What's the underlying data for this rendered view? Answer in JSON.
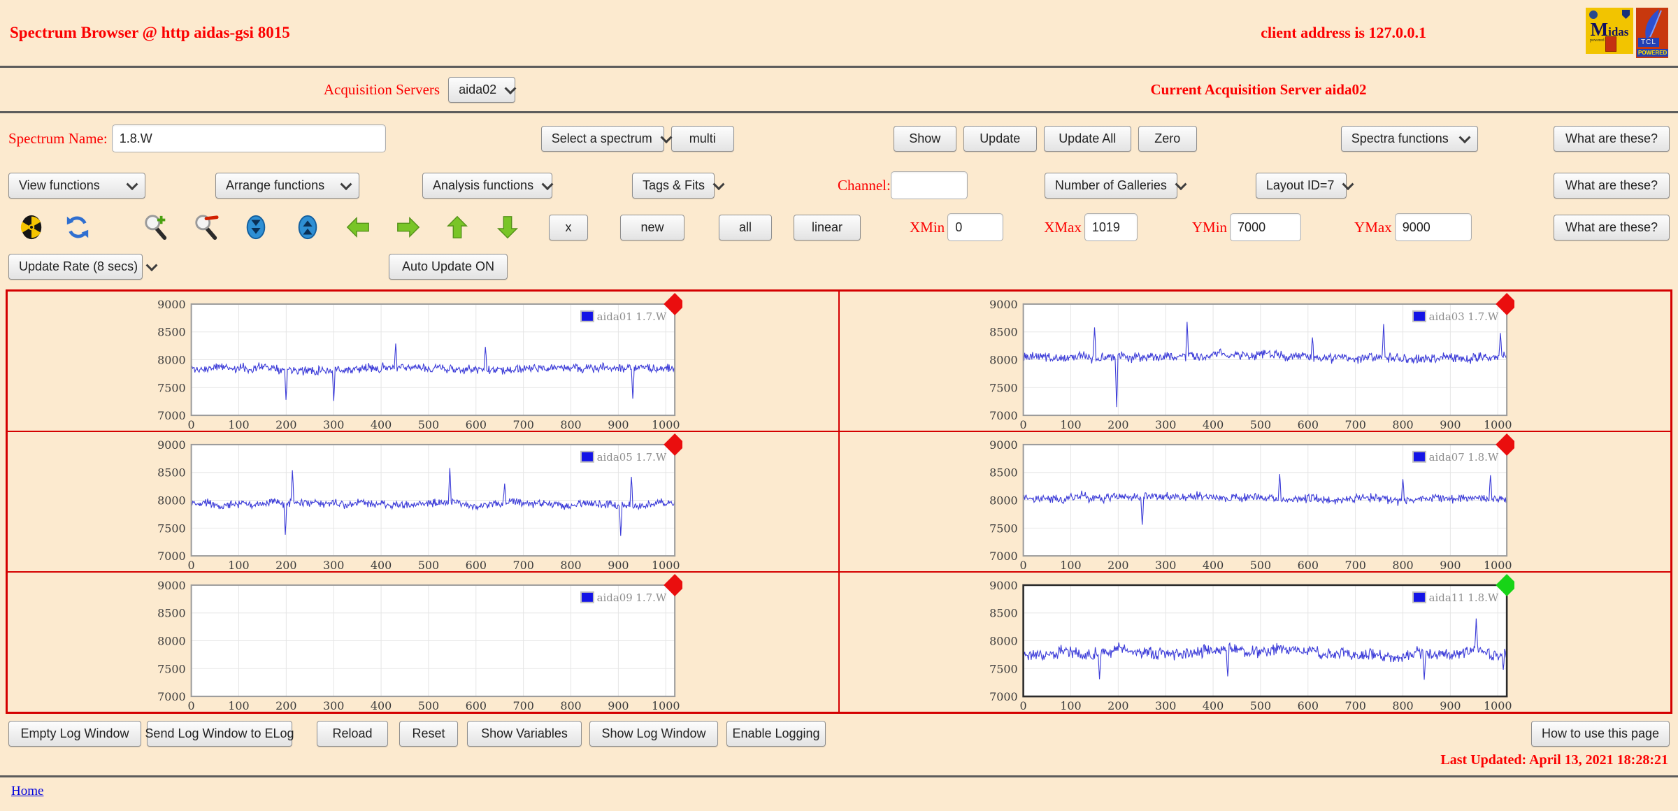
{
  "page": {
    "title": "Spectrum Browser @ http aidas-gsi 8015",
    "client_address": "client address is 127.0.0.1",
    "last_updated": "Last Updated: April 13, 2021 18:28:21",
    "home_link": "Home"
  },
  "logos": {
    "midas_initial": "M",
    "midas_rest": "idas",
    "powered_by": "powered by",
    "tcl_text": "TCL",
    "tcl_powered": "POWERED"
  },
  "acquisition": {
    "label": "Acquisition Servers",
    "selected_server": "aida02",
    "current_server_text": "Current Acquisition Server aida02"
  },
  "common": {
    "what_are_these": "What are these?"
  },
  "spectrum_row": {
    "name_label": "Spectrum Name:",
    "name_value": "1.8.W",
    "select_spectrum": "Select a spectrum",
    "multi": "multi",
    "show": "Show",
    "update": "Update",
    "update_all": "Update All",
    "zero": "Zero",
    "spectra_functions": "Spectra functions"
  },
  "functions_row": {
    "view_functions": "View functions",
    "arrange_functions": "Arrange functions",
    "analysis_functions": "Analysis functions",
    "tags_fits": "Tags & Fits",
    "channel_label": "Channel:",
    "channel_value": "",
    "number_of_galleries": "Number of Galleries",
    "layout_id": "Layout ID=7"
  },
  "toolbar": {
    "icons": [
      "radiation-icon",
      "refresh-icon",
      "zoom-in-icon",
      "zoom-out-icon",
      "shrink-vertical-icon",
      "expand-vertical-icon",
      "arrow-left-icon",
      "arrow-right-icon",
      "arrow-up-icon",
      "arrow-down-icon"
    ],
    "x": "x",
    "new": "new",
    "all": "all",
    "linear": "linear",
    "xmin_label": "XMin",
    "xmin": "0",
    "xmax_label": "XMax",
    "xmax": "1019",
    "ymin_label": "YMin",
    "ymin": "7000",
    "ymax_label": "YMax",
    "ymax": "9000"
  },
  "update_row": {
    "update_rate": "Update Rate (8 secs)",
    "auto_update": "Auto Update ON"
  },
  "footer": {
    "buttons": [
      "Empty Log Window",
      "Send Log Window to ELog",
      "Reload",
      "Reset",
      "Show Variables",
      "Show Log Window",
      "Enable Logging"
    ],
    "help_button": "How to use this page"
  },
  "colors": {
    "background": "#fceacf",
    "accent_red": "#fb0000",
    "grid_border_red": "#d40000",
    "line_blue": "#3c3cd8",
    "marker_red": "#ea0e0e",
    "marker_green": "#17d417"
  },
  "chart_data": [
    {
      "type": "line",
      "legend": "aida01 1.7.W",
      "line_color": "#3c3cd8",
      "marker": "red",
      "has_data": true,
      "x_range": [
        0,
        1019
      ],
      "y_range": [
        7000,
        9000
      ],
      "xticks": [
        0,
        100,
        200,
        300,
        400,
        500,
        600,
        700,
        800,
        900,
        1000
      ],
      "yticks": [
        7000,
        7500,
        8000,
        8500,
        9000
      ],
      "grid": true,
      "legend_position": "top-right",
      "baseline": 7840,
      "noise_amplitude": 90,
      "wander_amplitude": 26,
      "seed": 11,
      "n_points": 680,
      "spikes": [
        [
          200,
          7280
        ],
        [
          300,
          7260
        ],
        [
          430,
          8290
        ],
        [
          620,
          8230
        ],
        [
          930,
          7300
        ]
      ]
    },
    {
      "type": "line",
      "legend": "aida03 1.7.W",
      "line_color": "#3c3cd8",
      "marker": "red",
      "has_data": true,
      "x_range": [
        0,
        1019
      ],
      "y_range": [
        7000,
        9000
      ],
      "xticks": [
        0,
        100,
        200,
        300,
        400,
        500,
        600,
        700,
        800,
        900,
        1000
      ],
      "yticks": [
        7000,
        7500,
        8000,
        8500,
        9000
      ],
      "grid": true,
      "legend_position": "top-right",
      "baseline": 8060,
      "noise_amplitude": 100,
      "wander_amplitude": 26,
      "seed": 23,
      "n_points": 680,
      "spikes": [
        [
          150,
          8580
        ],
        [
          197,
          7150
        ],
        [
          345,
          8680
        ],
        [
          610,
          8400
        ],
        [
          760,
          8640
        ],
        [
          1005,
          8480
        ]
      ]
    },
    {
      "type": "line",
      "legend": "aida05 1.7.W",
      "line_color": "#3c3cd8",
      "marker": "red",
      "has_data": true,
      "x_range": [
        0,
        1019
      ],
      "y_range": [
        7000,
        9000
      ],
      "xticks": [
        0,
        100,
        200,
        300,
        400,
        500,
        600,
        700,
        800,
        900,
        1000
      ],
      "yticks": [
        7000,
        7500,
        8000,
        8500,
        9000
      ],
      "grid": true,
      "legend_position": "top-right",
      "baseline": 7930,
      "noise_amplitude": 85,
      "wander_amplitude": 22,
      "seed": 37,
      "n_points": 680,
      "spikes": [
        [
          198,
          7380
        ],
        [
          213,
          8540
        ],
        [
          545,
          8580
        ],
        [
          660,
          8300
        ],
        [
          905,
          7360
        ],
        [
          928,
          8420
        ]
      ]
    },
    {
      "type": "line",
      "legend": "aida07 1.8.W",
      "line_color": "#3c3cd8",
      "marker": "red",
      "has_data": true,
      "x_range": [
        0,
        1019
      ],
      "y_range": [
        7000,
        9000
      ],
      "xticks": [
        0,
        100,
        200,
        300,
        400,
        500,
        600,
        700,
        800,
        900,
        1000
      ],
      "yticks": [
        7000,
        7500,
        8000,
        8500,
        9000
      ],
      "grid": true,
      "legend_position": "top-right",
      "baseline": 8040,
      "noise_amplitude": 95,
      "wander_amplitude": 24,
      "seed": 41,
      "n_points": 680,
      "spikes": [
        [
          250,
          7560
        ],
        [
          540,
          8470
        ],
        [
          800,
          8380
        ],
        [
          985,
          8450
        ]
      ]
    },
    {
      "type": "line",
      "legend": "aida09 1.7.W",
      "line_color": "#3c3cd8",
      "marker": "red",
      "has_data": false,
      "x_range": [
        0,
        1019
      ],
      "y_range": [
        7000,
        9000
      ],
      "xticks": [
        0,
        100,
        200,
        300,
        400,
        500,
        600,
        700,
        800,
        900,
        1000
      ],
      "yticks": [
        7000,
        7500,
        8000,
        8500,
        9000
      ],
      "grid": true,
      "legend_position": "top-right",
      "baseline": 0,
      "noise_amplitude": 0,
      "wander_amplitude": 0,
      "seed": 0,
      "n_points": 0,
      "spikes": []
    },
    {
      "type": "line",
      "legend": "aida11 1.8.W",
      "line_color": "#3c3cd8",
      "marker": "green",
      "has_data": true,
      "x_range": [
        0,
        1019
      ],
      "y_range": [
        7000,
        9000
      ],
      "xticks": [
        0,
        100,
        200,
        300,
        400,
        500,
        600,
        700,
        800,
        900,
        1000
      ],
      "yticks": [
        7000,
        7500,
        8000,
        8500,
        9000
      ],
      "grid": true,
      "legend_position": "top-right",
      "baseline": 7790,
      "noise_amplitude": 125,
      "wander_amplitude": 40,
      "seed": 59,
      "n_points": 680,
      "spikes": [
        [
          160,
          7310
        ],
        [
          430,
          7360
        ],
        [
          845,
          7300
        ],
        [
          955,
          8400
        ],
        [
          1012,
          7480
        ]
      ]
    }
  ]
}
